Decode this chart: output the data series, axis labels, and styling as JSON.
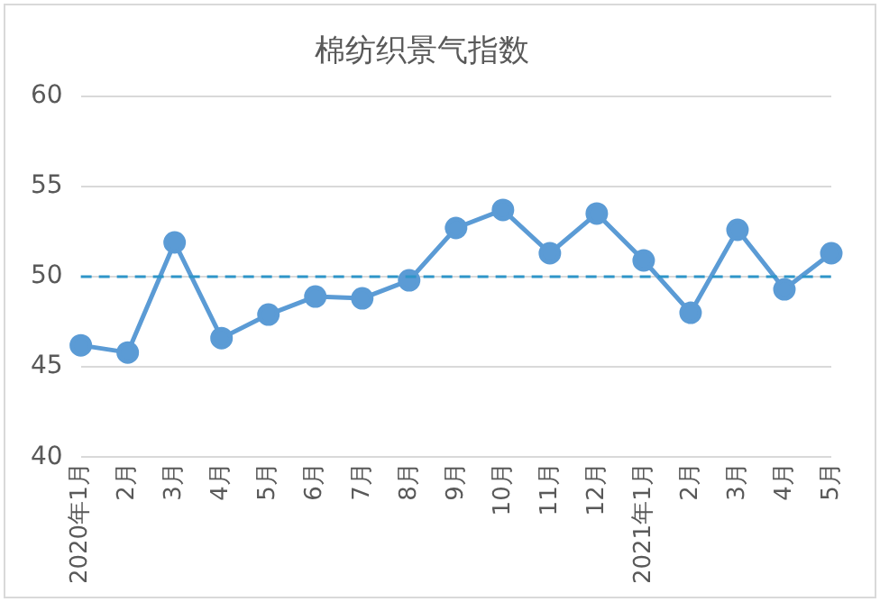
{
  "chart_data": {
    "type": "line",
    "title": "棉纺织景气指数",
    "categories": [
      "2020年1月",
      "2月",
      "3月",
      "4月",
      "5月",
      "6月",
      "7月",
      "8月",
      "9月",
      "10月",
      "11月",
      "12月",
      "2021年1月",
      "2月",
      "3月",
      "4月",
      "5月"
    ],
    "series": [
      {
        "color": "#5b9bd5",
        "values": [
          46.2,
          45.8,
          51.9,
          46.6,
          47.9,
          48.9,
          48.8,
          49.8,
          52.7,
          53.7,
          51.3,
          53.5,
          50.9,
          48.0,
          52.6,
          49.3,
          51.3
        ]
      }
    ],
    "ylim": [
      40,
      60
    ],
    "yticks": [
      40,
      45,
      50,
      55,
      60
    ],
    "grid": "y",
    "legend": false,
    "marker": "circle",
    "line_style": "solid",
    "ref_lines": [
      {
        "axis": "y",
        "value": 50,
        "color": "#2e95c8",
        "line_style": "dashed"
      }
    ]
  }
}
